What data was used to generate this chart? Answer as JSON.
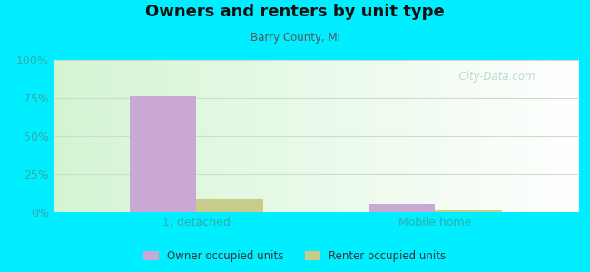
{
  "title": "Owners and renters by unit type",
  "subtitle": "Barry County, MI",
  "categories": [
    "1, detached",
    "Mobile home"
  ],
  "owner_values": [
    76.0,
    5.5
  ],
  "renter_values": [
    9.0,
    1.0
  ],
  "owner_color": "#c9a8d4",
  "renter_color": "#c8cc8a",
  "ylim": [
    0,
    100
  ],
  "yticks": [
    0,
    25,
    50,
    75,
    100
  ],
  "ytick_labels": [
    "0%",
    "25%",
    "50%",
    "75%",
    "100%"
  ],
  "background_color": "#00eeff",
  "bar_width": 0.28,
  "watermark": "  City-Data.com",
  "legend_owner": "Owner occupied units",
  "legend_renter": "Renter occupied units",
  "grid_color": "#ddeecc",
  "tick_color": "#00ddee",
  "title_fontsize": 13,
  "subtitle_fontsize": 8.5
}
